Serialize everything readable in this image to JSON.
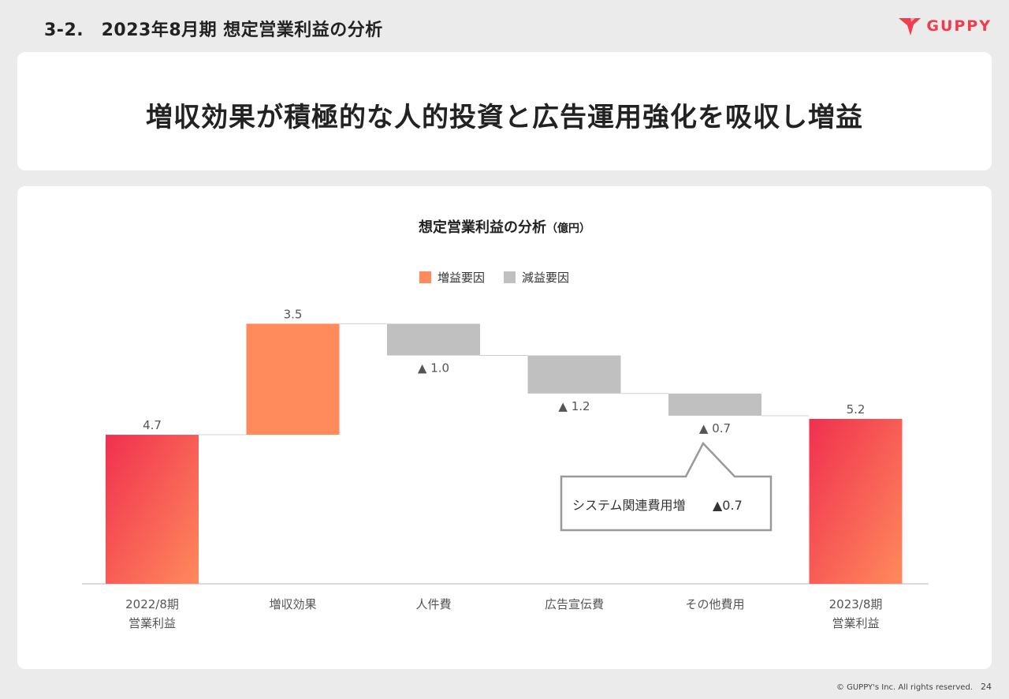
{
  "header": {
    "title": "3-2.　2023年8月期 想定営業利益の分析",
    "logo_text": "GUPPY",
    "logo_color": "#f03c4c"
  },
  "headline": "増収効果が積極的な人的投資と広告運用強化を吸収し増益",
  "chart_data": {
    "type": "waterfall",
    "title": "想定営業利益の分析",
    "unit_label": "（億円）",
    "legend": [
      {
        "label": "増益要因",
        "color": "#ff8a5c"
      },
      {
        "label": "減益要因",
        "color": "#c0c0c0"
      }
    ],
    "categories": [
      "2022/8期\n営業利益",
      "増収効果",
      "人件費",
      "広告宣伝費",
      "その他費用",
      "2023/8期\n営業利益"
    ],
    "steps": [
      {
        "kind": "total",
        "value": 4.7,
        "label": "4.7"
      },
      {
        "kind": "increase",
        "value": 3.5,
        "label": "3.5"
      },
      {
        "kind": "decrease",
        "value": 1.0,
        "label": "▲ 1.0"
      },
      {
        "kind": "decrease",
        "value": 1.2,
        "label": "▲ 1.2"
      },
      {
        "kind": "decrease",
        "value": 0.7,
        "label": "▲ 0.7"
      },
      {
        "kind": "total",
        "value": 5.2,
        "label": "5.2"
      }
    ],
    "ylim": [
      0,
      8.2
    ],
    "annotation": {
      "category": "その他費用",
      "text": "システム関連費用増",
      "value": "▲0.7"
    },
    "colors": {
      "total_start": "#f0304f",
      "total_end": "#ff8a5c",
      "increase": "#ff8a5c",
      "decrease": "#c0c0c0"
    }
  },
  "footer": {
    "copyright": "© GUPPY's Inc. All rights reserved.",
    "page": "24"
  }
}
